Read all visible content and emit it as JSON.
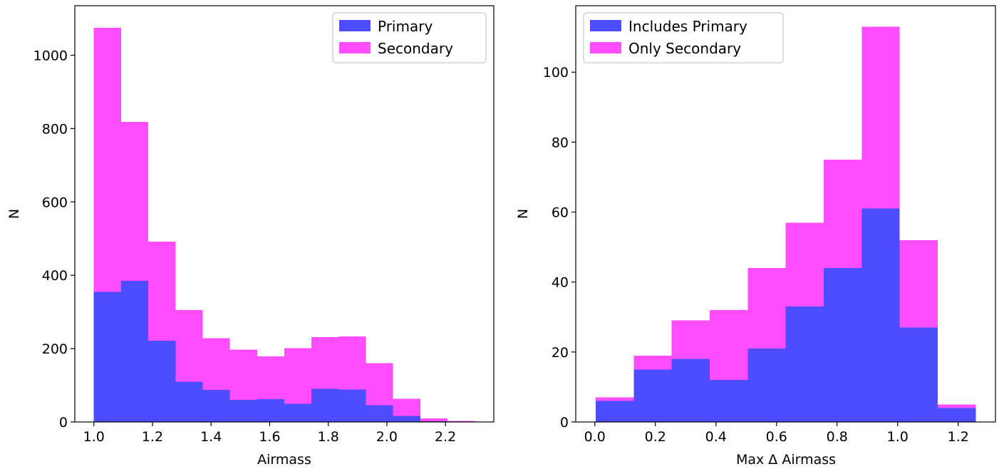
{
  "colors": {
    "primary": "#4d4dff",
    "secondary": "#ff4dff",
    "axis": "#000000"
  },
  "chart_data": [
    {
      "type": "bar",
      "stacked": true,
      "xlabel": "Airmass",
      "ylabel": "N",
      "xlim": [
        0.935,
        2.365
      ],
      "ylim": [
        0,
        1135
      ],
      "xticks": [
        1.0,
        1.2,
        1.4,
        1.6,
        1.8,
        2.0,
        2.2
      ],
      "xtick_labels": [
        "1.0",
        "1.2",
        "1.4",
        "1.6",
        "1.8",
        "2.0",
        "2.2"
      ],
      "yticks": [
        0,
        200,
        400,
        600,
        800,
        1000
      ],
      "ytick_labels": [
        "0",
        "200",
        "400",
        "600",
        "800",
        "1000"
      ],
      "bin_edges": [
        1.0,
        1.0929,
        1.1857,
        1.2786,
        1.3714,
        1.4643,
        1.5571,
        1.65,
        1.7429,
        1.8357,
        1.9286,
        2.0214,
        2.1143,
        2.2071,
        2.3
      ],
      "series": [
        {
          "name": "Primary",
          "color": "#4d4dff",
          "values": [
            355,
            385,
            222,
            110,
            87,
            60,
            62,
            50,
            90,
            88,
            46,
            17,
            2,
            0
          ]
        },
        {
          "name": "Secondary",
          "color": "#ff4dff",
          "values": [
            720,
            433,
            270,
            195,
            141,
            137,
            117,
            151,
            141,
            145,
            114,
            46,
            8,
            3
          ]
        }
      ],
      "legend": {
        "position": "top-right"
      },
      "grid": false
    },
    {
      "type": "bar",
      "stacked": true,
      "xlabel": "Max Δ Airmass",
      "ylabel": "N",
      "xlim": [
        -0.063,
        1.323
      ],
      "ylim": [
        0,
        119
      ],
      "xticks": [
        0.0,
        0.2,
        0.4,
        0.6,
        0.8,
        1.0,
        1.2
      ],
      "xtick_labels": [
        "0.0",
        "0.2",
        "0.4",
        "0.6",
        "0.8",
        "1.0",
        "1.2"
      ],
      "yticks": [
        0,
        20,
        40,
        60,
        80,
        100
      ],
      "ytick_labels": [
        "0",
        "20",
        "40",
        "60",
        "80",
        "100"
      ],
      "bin_edges": [
        0.003,
        0.1285,
        0.254,
        0.3795,
        0.505,
        0.6305,
        0.756,
        0.8815,
        1.007,
        1.1325,
        1.258
      ],
      "series": [
        {
          "name": "Includes Primary",
          "color": "#4d4dff",
          "values": [
            6,
            15,
            18,
            12,
            21,
            33,
            44,
            61,
            27,
            4
          ]
        },
        {
          "name": "Only Secondary",
          "color": "#ff4dff",
          "values": [
            1,
            4,
            11,
            20,
            23,
            24,
            31,
            52,
            25,
            1
          ]
        }
      ],
      "legend": {
        "position": "top-left"
      },
      "grid": false
    }
  ]
}
